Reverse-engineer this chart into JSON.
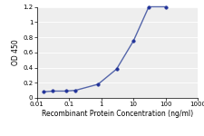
{
  "x": [
    0.016,
    0.032,
    0.08,
    0.16,
    0.8,
    3,
    10,
    30,
    100
  ],
  "y": [
    0.08,
    0.09,
    0.09,
    0.1,
    0.18,
    0.38,
    0.75,
    1.2,
    1.2
  ],
  "xlim": [
    0.01,
    1000
  ],
  "ylim": [
    0,
    1.2
  ],
  "yticks": [
    0,
    0.2,
    0.4,
    0.6,
    0.8,
    1.0,
    1.2
  ],
  "xtick_positions": [
    0.01,
    0.1,
    1,
    10,
    100,
    1000
  ],
  "xtick_labels": [
    "0.01",
    "0.1",
    "1",
    "10",
    "100",
    "1000"
  ],
  "xlabel": "Recombinant Protein Concentration (ng/ml)",
  "ylabel": "OD 450",
  "line_color": "#5566aa",
  "marker_color": "#223399",
  "marker_size": 2.5,
  "line_width": 1.0,
  "bg_color": "#eeeeee",
  "grid_color": "#ffffff",
  "title_fontsize": 6,
  "label_fontsize": 5.5,
  "tick_fontsize": 5
}
